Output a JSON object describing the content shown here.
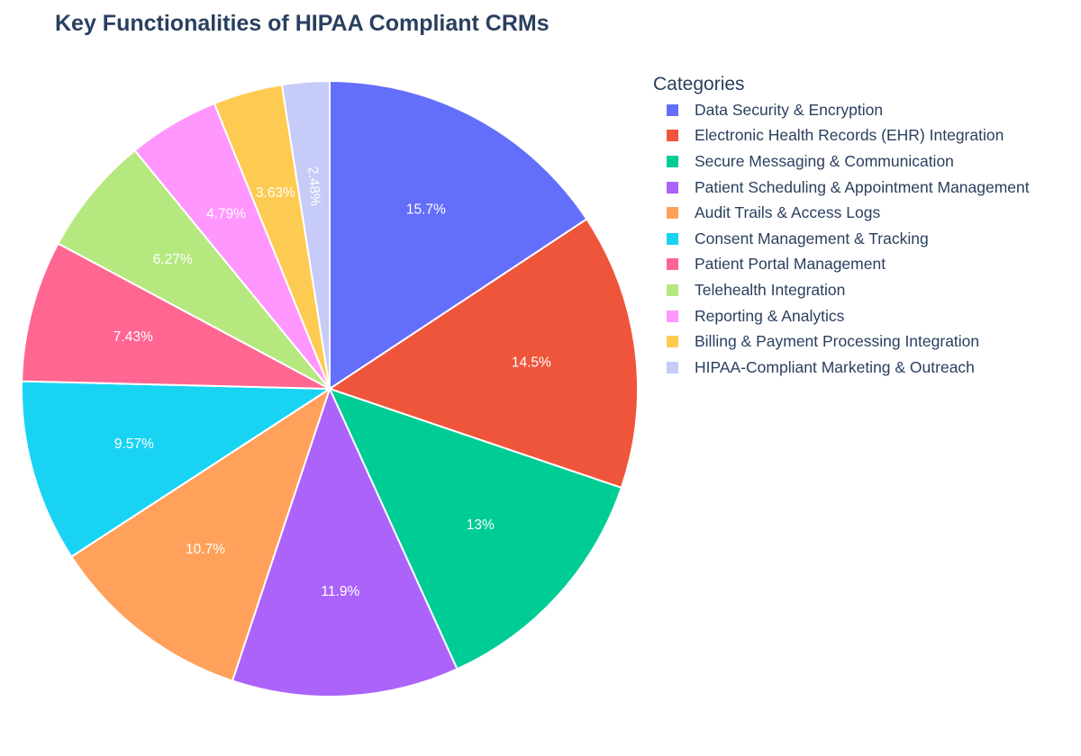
{
  "chart_data": {
    "type": "pie",
    "title": "Key Functionalities of HIPAA Compliant CRMs",
    "legend_title": "Categories",
    "legend_position": "right",
    "direction": "clockwise",
    "labels": [
      "Data Security & Encryption",
      "Electronic Health Records (EHR) Integration",
      "Secure Messaging & Communication",
      "Patient Scheduling & Appointment Management",
      "Audit Trails & Access Logs",
      "Consent Management & Tracking",
      "Patient Portal Management",
      "Telehealth Integration",
      "Reporting & Analytics",
      "Billing & Payment Processing Integration",
      "HIPAA-Compliant Marketing & Outreach"
    ],
    "values": [
      15.7,
      14.5,
      13,
      11.9,
      10.7,
      9.57,
      7.43,
      6.27,
      4.79,
      3.63,
      2.48
    ],
    "percent_labels": [
      "15.7%",
      "14.5%",
      "13%",
      "11.9%",
      "10.7%",
      "9.57%",
      "7.43%",
      "6.27%",
      "4.79%",
      "3.63%",
      "2.48%"
    ],
    "colors": [
      "#636efa",
      "#ef553b",
      "#00cc96",
      "#ab63fa",
      "#ffa15a",
      "#19d3f3",
      "#ff6692",
      "#b6e880",
      "#ff97ff",
      "#fecb52",
      "#c6cbf7"
    ]
  }
}
